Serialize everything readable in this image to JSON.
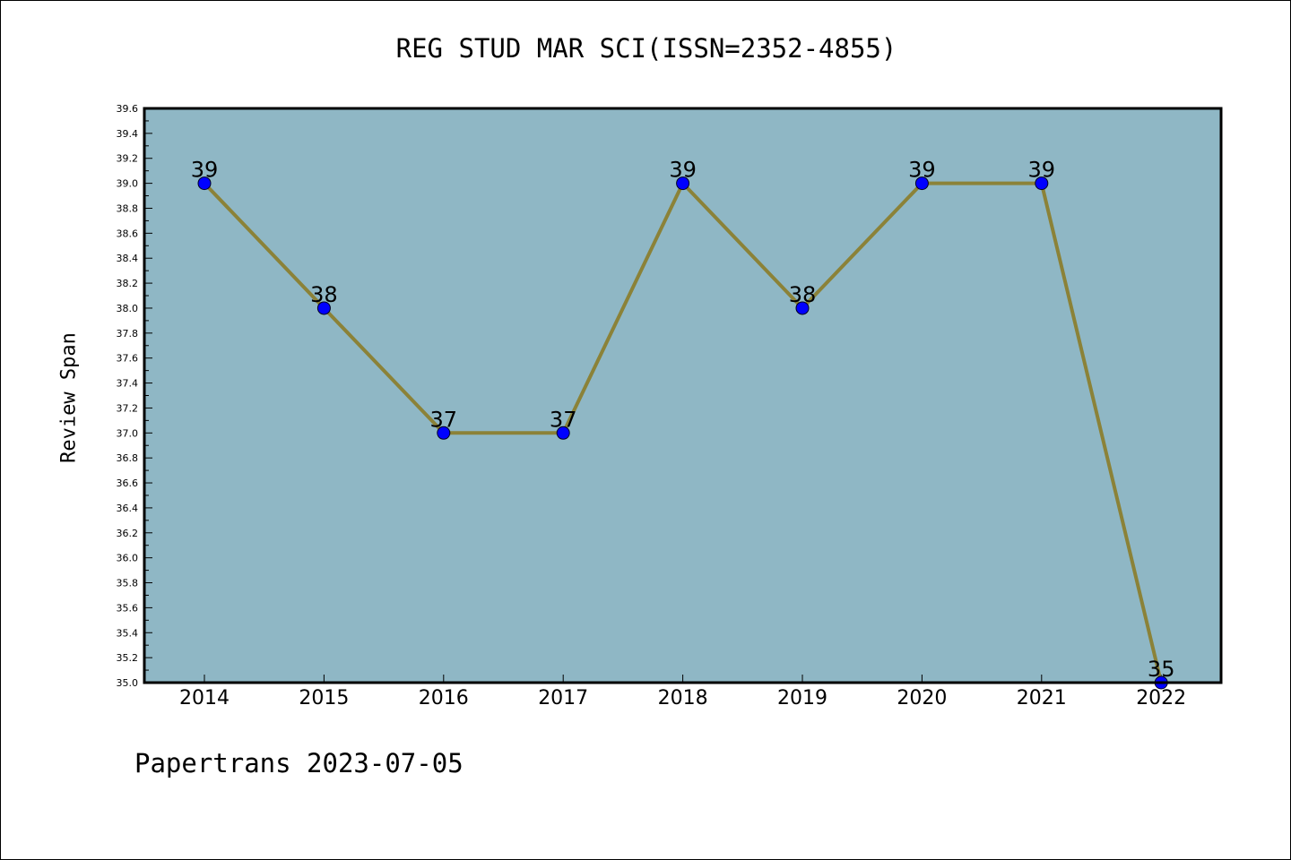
{
  "chart_data": {
    "type": "line",
    "title": "REG STUD MAR SCI(ISSN=2352-4855)",
    "xlabel": "",
    "ylabel": "Review Span",
    "categories": [
      "2014",
      "2015",
      "2016",
      "2017",
      "2018",
      "2019",
      "2020",
      "2021",
      "2022"
    ],
    "series": [
      {
        "values": [
          39,
          38,
          37,
          37,
          39,
          38,
          39,
          39,
          35
        ],
        "line_color": "#8b8238",
        "marker_color": "#0000ff"
      }
    ],
    "data_labels": [
      "39",
      "38",
      "37",
      "37",
      "39",
      "38",
      "39",
      "39",
      "35"
    ],
    "ylim": [
      35.0,
      39.6
    ],
    "yticks": [
      "35.0",
      "35.2",
      "35.4",
      "35.6",
      "35.8",
      "36.0",
      "36.2",
      "36.4",
      "36.6",
      "36.8",
      "37.0",
      "37.2",
      "37.4",
      "37.6",
      "37.8",
      "38.0",
      "38.2",
      "38.4",
      "38.6",
      "38.8",
      "39.0",
      "39.2",
      "39.4",
      "39.6"
    ],
    "grid": false,
    "plot_background": "#8fb7c5"
  },
  "footer": {
    "text": "Papertrans 2023-07-05"
  }
}
